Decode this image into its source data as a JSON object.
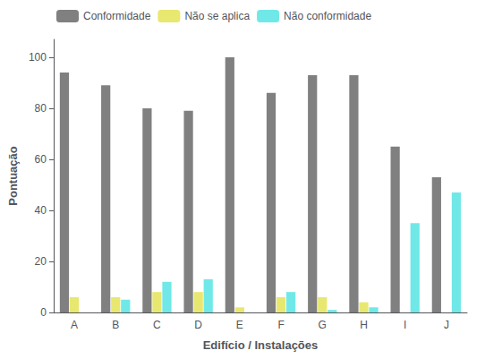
{
  "chart_data": {
    "type": "bar",
    "xlabel": "Edifício / Instalações",
    "ylabel": "Pontuação",
    "categories": [
      "A",
      "B",
      "C",
      "D",
      "E",
      "F",
      "G",
      "H",
      "I",
      "J"
    ],
    "series": [
      {
        "name": "Conformidade",
        "color": "#808080",
        "values": [
          94,
          89,
          80,
          79,
          100,
          86,
          93,
          93,
          65,
          53
        ]
      },
      {
        "name": "Não se aplica",
        "color": "#e8e870",
        "values": [
          6,
          6,
          8,
          8,
          2,
          6,
          6,
          4,
          0,
          0
        ]
      },
      {
        "name": "Não conformidade",
        "color": "#70e8e8",
        "values": [
          0,
          5,
          12,
          13,
          0,
          8,
          1,
          2,
          35,
          47
        ]
      }
    ],
    "ylim": [
      0,
      107
    ],
    "yticks": [
      0,
      20,
      40,
      60,
      80,
      100
    ],
    "grid": false,
    "legend": "upper left"
  }
}
